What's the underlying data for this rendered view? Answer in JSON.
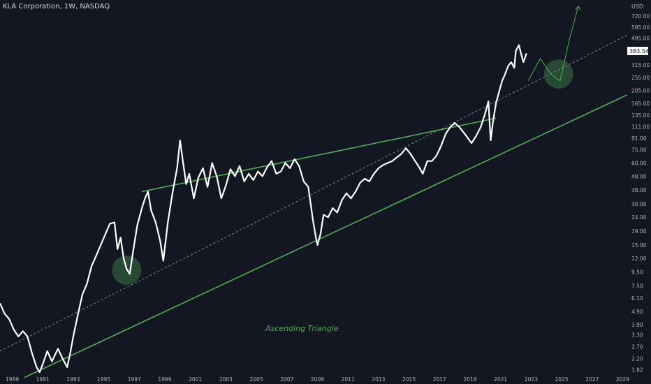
{
  "symbol_label": "KLA Corporation, 1W, NASDAQ",
  "currency": "USD",
  "last_price": "383.54",
  "annotation": "Ascending Triangle",
  "colors": {
    "background": "#131722",
    "price": "#ffffff",
    "trendline": "#4caf50",
    "annotation": "#4caf50",
    "circle": "#2e5c3a",
    "midline": "#9598a1",
    "axis_text": "#b2b5be",
    "price_tag_bg": "#ffffff",
    "price_tag_text": "#131722"
  },
  "chart_data": {
    "type": "line",
    "scale": "log",
    "grid": false,
    "xlim": [
      1988.2,
      2029.3
    ],
    "ylim": [
      1.65,
      900
    ],
    "x_ticks": [
      "1989",
      "1991",
      "1993",
      "1995",
      "1997",
      "1999",
      "2001",
      "2003",
      "2005",
      "2007",
      "2009",
      "2011",
      "2013",
      "2015",
      "2017",
      "2019",
      "2021",
      "2023",
      "2025",
      "2027",
      "2029"
    ],
    "y_ticks": [
      "720.00",
      "595.00",
      "495.00",
      "315.00",
      "255.00",
      "205.00",
      "165.00",
      "135.00",
      "111.00",
      "91.00",
      "75.00",
      "60.00",
      "48.00",
      "38.00",
      "30.00",
      "24.00",
      "19.00",
      "15.00",
      "12.00",
      "9.50",
      "7.50",
      "6.10",
      "4.90",
      "3.90",
      "3.30",
      "2.70",
      "2.20",
      "1.82"
    ],
    "series": [
      {
        "x": [
          1988.2,
          1988.5,
          1988.8,
          1989.1,
          1989.4,
          1989.7,
          1990.0,
          1990.3,
          1990.6,
          1990.8,
          1991.0,
          1991.3,
          1991.6,
          1992.0,
          1992.3,
          1992.6,
          1992.8,
          1993.0,
          1993.3,
          1993.6,
          1993.9,
          1994.2,
          1994.5,
          1994.8,
          1995.1,
          1995.4,
          1995.7,
          1995.9,
          1996.1,
          1996.3,
          1996.5,
          1996.7,
          1996.9,
          1997.2,
          1997.5,
          1997.7,
          1997.9,
          1998.1,
          1998.4,
          1998.7,
          1998.9,
          1999.2,
          1999.5,
          1999.8,
          2000.0,
          2000.2,
          2000.4,
          2000.6,
          2000.9,
          2001.2,
          2001.5,
          2001.8,
          2002.1,
          2002.4,
          2002.7,
          2003.0,
          2003.3,
          2003.6,
          2003.9,
          2004.2,
          2004.5,
          2004.8,
          2005.1,
          2005.4,
          2005.7,
          2006.0,
          2006.3,
          2006.6,
          2006.9,
          2007.2,
          2007.5,
          2007.8,
          2008.1,
          2008.4,
          2008.7,
          2008.9,
          2009.0,
          2009.2,
          2009.4,
          2009.7,
          2010.0,
          2010.3,
          2010.6,
          2010.9,
          2011.2,
          2011.5,
          2011.8,
          2012.1,
          2012.4,
          2012.7,
          2013.0,
          2013.3,
          2013.6,
          2013.9,
          2014.2,
          2014.5,
          2014.8,
          2015.1,
          2015.4,
          2015.7,
          2015.9,
          2016.2,
          2016.5,
          2016.8,
          2017.1,
          2017.4,
          2017.7,
          2018.0,
          2018.3,
          2018.6,
          2018.9,
          2019.1,
          2019.4,
          2019.7,
          2020.0,
          2020.2,
          2020.35,
          2020.5,
          2020.7,
          2020.9,
          2021.1,
          2021.3,
          2021.5,
          2021.7,
          2021.9,
          2022.0,
          2022.2,
          2022.4,
          2022.5,
          2022.7
        ],
        "values": [
          5.6,
          4.7,
          4.3,
          3.6,
          3.2,
          3.5,
          3.2,
          2.4,
          1.9,
          1.75,
          2.0,
          2.5,
          2.1,
          2.6,
          2.2,
          1.9,
          2.4,
          3.2,
          4.6,
          6.5,
          7.8,
          10.5,
          12.5,
          15,
          18,
          21.5,
          22,
          14,
          17,
          12,
          10,
          9.2,
          13,
          21,
          28,
          33,
          37,
          27,
          22,
          16,
          11.5,
          22,
          36,
          55,
          88,
          60,
          42,
          50,
          33,
          47,
          55,
          40,
          60,
          48,
          33,
          41,
          54,
          48,
          57,
          44,
          50,
          45,
          52,
          48,
          56,
          62,
          50,
          52,
          60,
          55,
          64,
          57,
          44,
          40,
          23,
          17,
          15,
          18,
          25,
          24,
          28,
          26,
          32,
          36,
          33,
          37,
          43,
          46,
          44,
          50,
          55,
          58,
          60,
          62,
          66,
          70,
          77,
          70,
          62,
          55,
          50,
          62,
          62,
          68,
          80,
          98,
          110,
          118,
          110,
          100,
          90,
          84,
          95,
          110,
          140,
          170,
          88,
          120,
          165,
          200,
          240,
          270,
          310,
          330,
          300,
          400,
          440,
          360,
          330,
          383.54
        ]
      }
    ],
    "trendlines": [
      {
        "name": "support",
        "x": [
          1989.8,
          2029.3
        ],
        "y": [
          1.6,
          190
        ]
      },
      {
        "name": "resistance",
        "x": [
          1997.5,
          2020.7
        ],
        "y": [
          37,
          128
        ]
      },
      {
        "name": "median",
        "x": [
          1988.2,
          2029.3
        ],
        "y": [
          2.5,
          520
        ],
        "dashed": true
      }
    ],
    "projection": {
      "x": [
        2022.8,
        2023.6,
        2024.3,
        2024.9,
        2025.5,
        2026.1
      ],
      "y": [
        240,
        350,
        270,
        240,
        480,
        850
      ]
    },
    "highlight_circles": [
      {
        "x": 1996.5,
        "y": 9.8
      },
      {
        "x": 2024.8,
        "y": 270
      }
    ]
  }
}
